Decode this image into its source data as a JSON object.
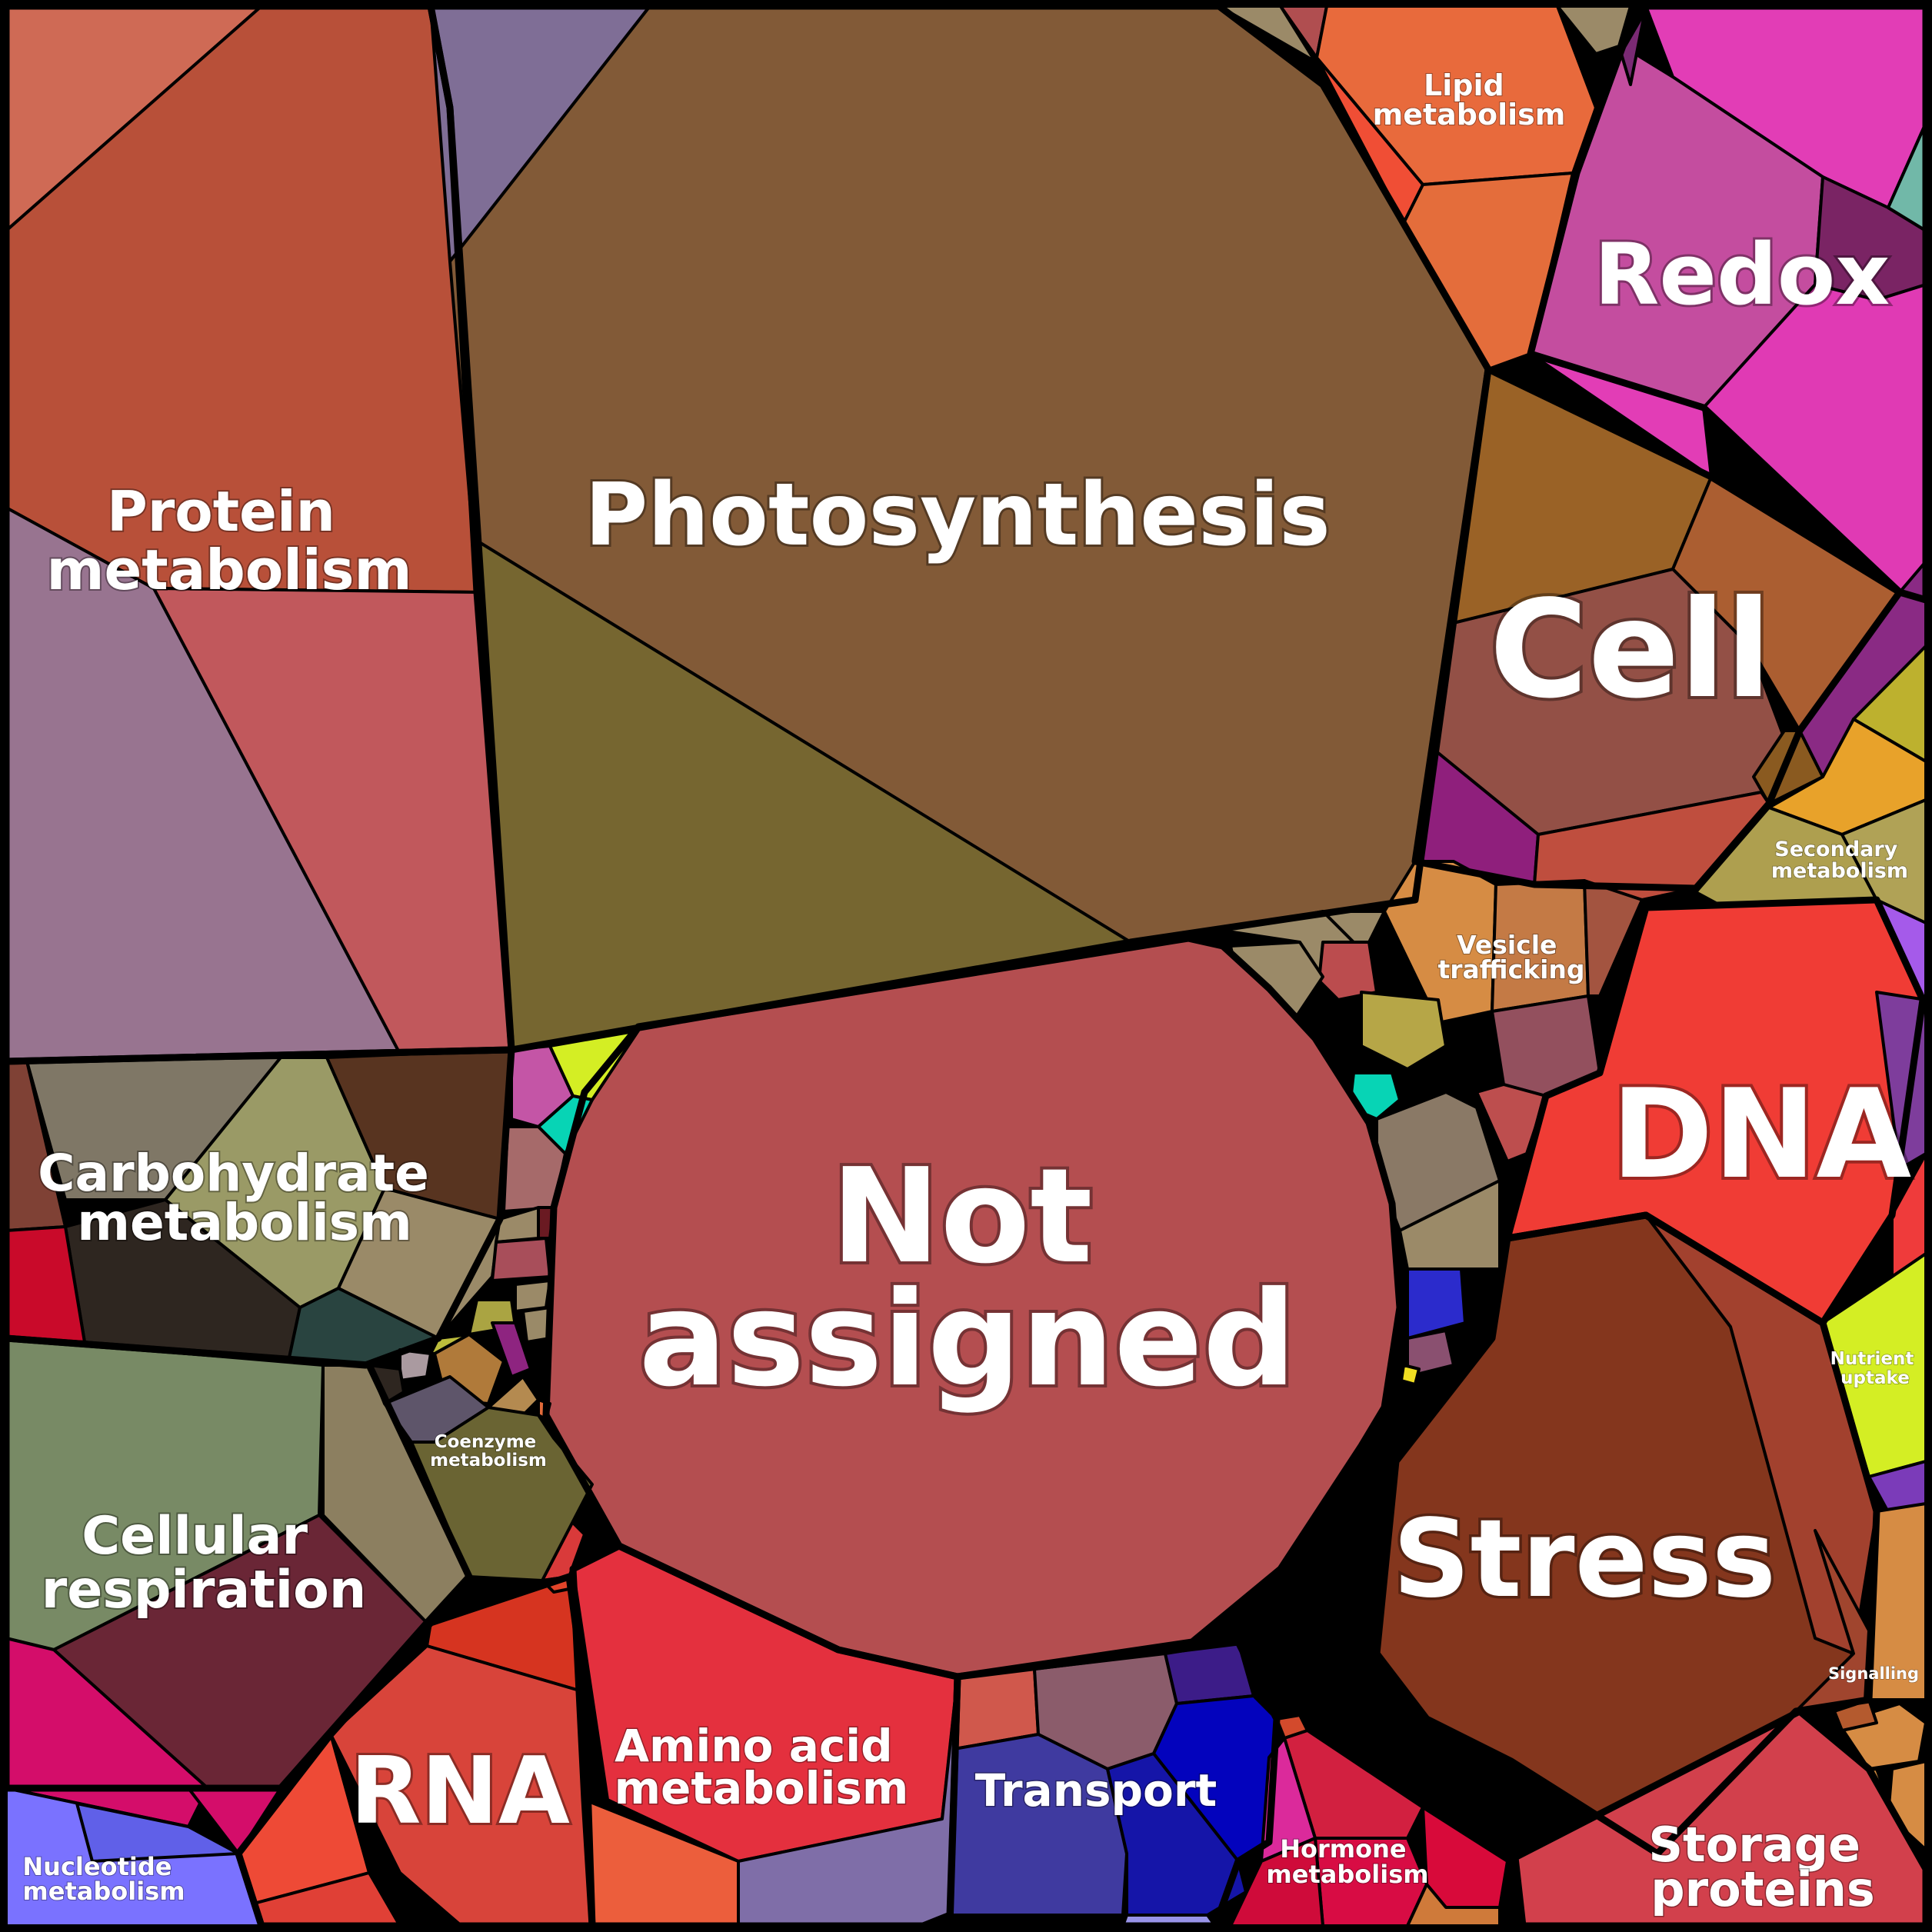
{
  "chart_data": {
    "type": "voronoi-treemap",
    "categories": [
      {
        "id": "photosynthesis",
        "label": [
          "Photosynthesis"
        ],
        "color": "#825a37"
      },
      {
        "id": "not-assigned",
        "label": [
          "Not",
          "assigned"
        ],
        "color": "#b44e50"
      },
      {
        "id": "protein-metabolism",
        "label": [
          "Protein",
          "metabolism"
        ],
        "color": "#b85039"
      },
      {
        "id": "cell",
        "label": [
          "Cell"
        ],
        "color": "#935046"
      },
      {
        "id": "dna",
        "label": [
          "DNA"
        ],
        "color": "#f03c35"
      },
      {
        "id": "stress",
        "label": [
          "Stress"
        ],
        "color": "#84361d"
      },
      {
        "id": "redox",
        "label": [
          "Redox"
        ],
        "color": "#c44d9f"
      },
      {
        "id": "lipid-metabolism",
        "label": [
          "Lipid",
          "metabolism"
        ],
        "color": "#e86a3c"
      },
      {
        "id": "carbohydrate-metabolism",
        "label": [
          "Carbohydrate",
          "metabolism"
        ],
        "color": "#9a9a66"
      },
      {
        "id": "cellular-respiration",
        "label": [
          "Cellular",
          "respiration"
        ],
        "color": "#788a65"
      },
      {
        "id": "rna",
        "label": [
          "RNA"
        ],
        "color": "#d8443a"
      },
      {
        "id": "amino-acid-metabolism",
        "label": [
          "Amino acid",
          "metabolism"
        ],
        "color": "#e4303e"
      },
      {
        "id": "transport",
        "label": [
          "Transport"
        ],
        "color": "#3f3aa0"
      },
      {
        "id": "hormone-metabolism",
        "label": [
          "Hormone",
          "metabolism"
        ],
        "color": "#cc1234"
      },
      {
        "id": "storage-proteins",
        "label": [
          "Storage",
          "proteins"
        ],
        "color": "#d2404c"
      },
      {
        "id": "nucleotide-metabolism",
        "label": [
          "Nucleotide",
          "metabolism"
        ],
        "color": "#7a72ff"
      },
      {
        "id": "coenzyme-metabolism",
        "label": [
          "Coenzyme",
          "metabolism"
        ],
        "color": "#6a6433"
      },
      {
        "id": "vesicle-trafficking",
        "label": [
          "Vesicle",
          "trafficking"
        ],
        "color": "#d68c44"
      },
      {
        "id": "secondary-metabolism",
        "label": [
          "Secondary",
          "metabolism"
        ],
        "color": "#ae9f4f"
      },
      {
        "id": "nutrient-uptake",
        "label": [
          "Nutrient",
          "uptake"
        ],
        "color": "#d4ee24"
      },
      {
        "id": "signalling",
        "label": [
          "Signalling"
        ],
        "color": "#cc8a3e"
      }
    ]
  }
}
